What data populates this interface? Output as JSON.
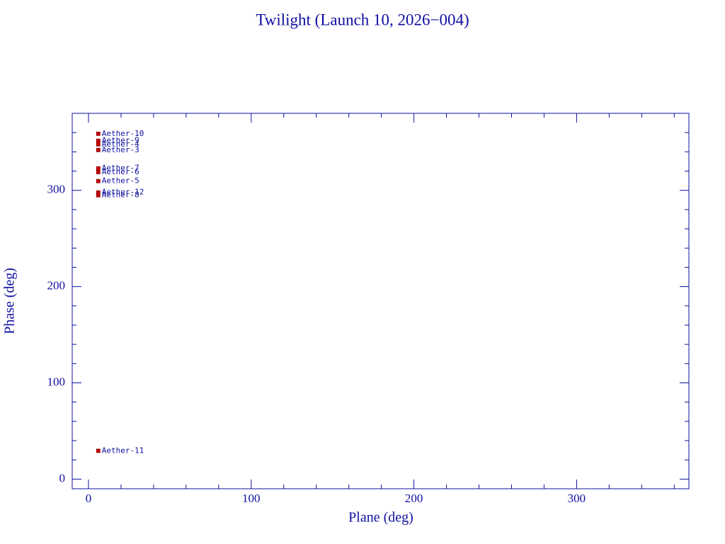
{
  "chart_data": {
    "type": "scatter",
    "title": "Twilight (Launch 10, 2026−004)",
    "xlabel": "Plane (deg)",
    "ylabel": "Phase (deg)",
    "x": [
      6,
      6,
      6,
      6,
      6,
      6,
      6,
      6,
      6,
      6
    ],
    "values": [
      358.8,
      351.5,
      347.8,
      341.9,
      322.8,
      319,
      309.6,
      297.8,
      294.9,
      29.4
    ],
    "labels": [
      "Aether-10",
      "Aether-9",
      "Aether-4",
      "Aether-3",
      "Aether-7",
      "Aether-6",
      "Aether-5",
      "Aether-12",
      "Aether-8",
      "Aether-11"
    ],
    "color": "#cc0000",
    "xlim": [
      -10,
      369
    ],
    "ylim": [
      -10,
      380
    ],
    "xticks": [
      0,
      100,
      200,
      300
    ],
    "yticks": [
      0,
      100,
      200,
      300
    ],
    "xticks_minor": [
      20,
      40,
      60,
      80,
      120,
      140,
      160,
      180,
      220,
      240,
      260,
      280,
      320,
      340,
      360
    ],
    "yticks_minor": [
      20,
      40,
      60,
      80,
      120,
      140,
      160,
      180,
      220,
      240,
      260,
      280,
      320,
      340,
      360
    ]
  }
}
